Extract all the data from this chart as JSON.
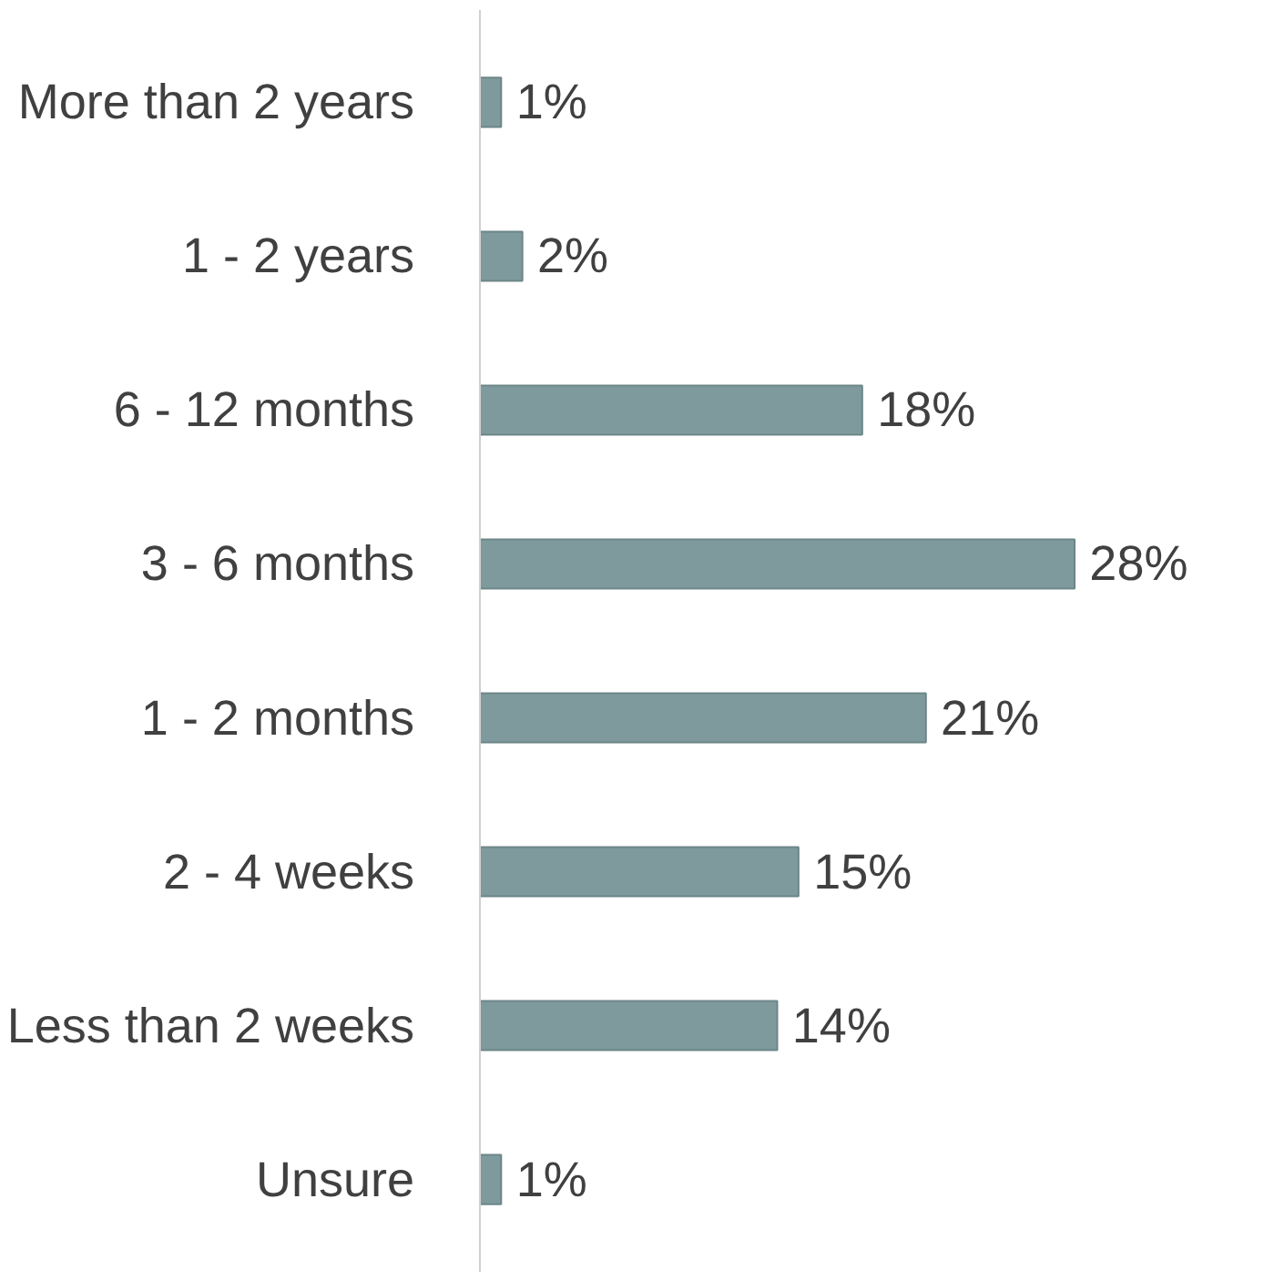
{
  "chart_data": {
    "type": "bar",
    "orientation": "horizontal",
    "categories": [
      "More than 2 years",
      "1 - 2 years",
      "6 - 12 months",
      "3 - 6 months",
      "1 - 2 months",
      "2 - 4 weeks",
      "Less than 2 weeks",
      "Unsure"
    ],
    "values": [
      1,
      2,
      18,
      28,
      21,
      15,
      14,
      1
    ],
    "value_labels": [
      "1%",
      "2%",
      "18%",
      "28%",
      "21%",
      "15%",
      "14%",
      "1%"
    ],
    "color": "#7f9a9c",
    "grid": false
  }
}
